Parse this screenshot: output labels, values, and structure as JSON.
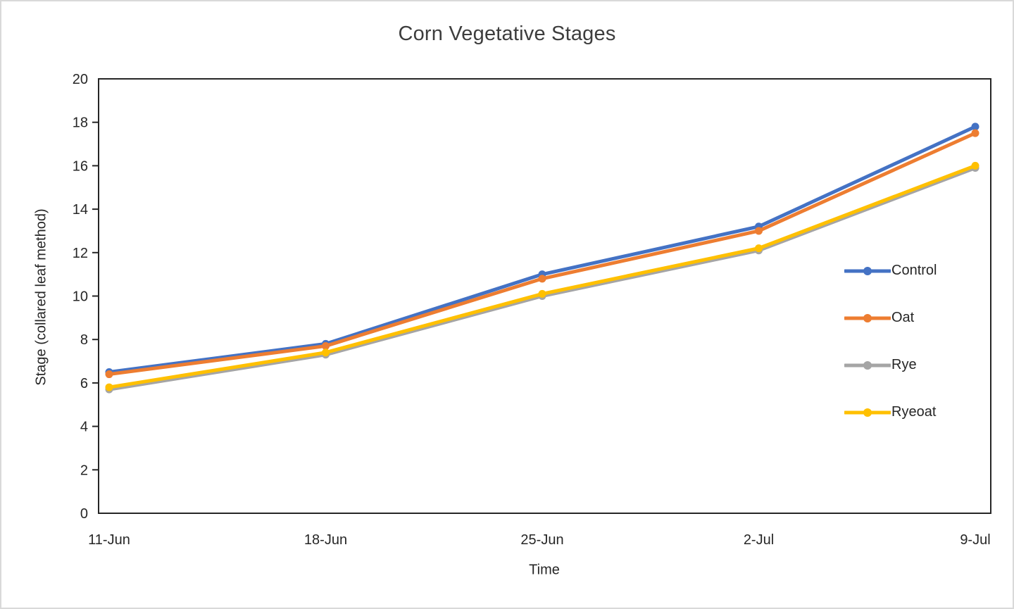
{
  "window": {
    "background": "#ffffff",
    "border_color": "#d9d9d9"
  },
  "chart_data": {
    "type": "line",
    "title": "Corn Vegetative Stages",
    "xlabel": "Time",
    "ylabel": "Stage (collared leaf method)",
    "categories": [
      "11-Jun",
      "18-Jun",
      "25-Jun",
      "2-Jul",
      "9-Jul"
    ],
    "series": [
      {
        "name": "Control",
        "color": "#4472C4",
        "values": [
          6.5,
          7.8,
          11.0,
          13.2,
          17.8
        ]
      },
      {
        "name": "Oat",
        "color": "#ED7D31",
        "values": [
          6.4,
          7.7,
          10.8,
          13.0,
          17.5
        ]
      },
      {
        "name": "Rye",
        "color": "#A5A5A5",
        "values": [
          5.7,
          7.3,
          10.0,
          12.1,
          15.9
        ]
      },
      {
        "name": "Ryeoat",
        "color": "#FFC000",
        "values": [
          5.8,
          7.4,
          10.1,
          12.2,
          16.0
        ]
      }
    ],
    "ylim": [
      0,
      20
    ],
    "ytick_step": 2,
    "yticks": [
      "0",
      "2",
      "4",
      "6",
      "8",
      "10",
      "12",
      "14",
      "16",
      "18",
      "20"
    ],
    "grid": false,
    "legend_position": "right-inside",
    "legend_entries": [
      "Control",
      "Oat",
      "Rye",
      "Ryeoat"
    ],
    "styles": {
      "title_color": "#3d3d3d",
      "axis_text_color": "#262626",
      "axis_line_color": "#262626",
      "marker_shape": "circle"
    }
  }
}
